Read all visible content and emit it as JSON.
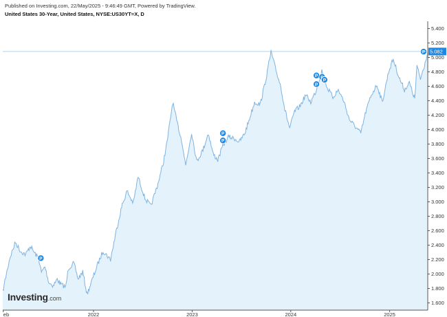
{
  "header": {
    "published": "Published on Investing.com, 22/May/2025 - 9:46:49 GMT, Powered by TradingView.",
    "instrument": "United States 30-Year, United States, NYSE:US30YT=X, D"
  },
  "logo": {
    "main": "Investing",
    "suffix": ".com"
  },
  "colors": {
    "line": "#7fb3e0",
    "fill": "#e3f2fb",
    "marker": "#1e88e5",
    "current_line": "#9ec4e4",
    "current_label_bg": "#1e88e5"
  },
  "chart_data": {
    "type": "area",
    "title": "",
    "xlabel": "",
    "ylabel": "",
    "x_range": [
      "2021-01-30",
      "2025-05-22"
    ],
    "ylim": [
      1.5,
      5.5
    ],
    "y_ticks": [
      "1.600",
      "1.800",
      "2.000",
      "2.200",
      "2.400",
      "2.600",
      "2.800",
      "3.000",
      "3.200",
      "3.400",
      "3.600",
      "3.800",
      "4.000",
      "4.200",
      "4.400",
      "4.600",
      "4.800",
      "5.000",
      "5.200",
      "5.400"
    ],
    "x_ticks": [
      {
        "date": "2021-02-01",
        "label": "eb"
      },
      {
        "date": "2022-01-01",
        "label": "2022"
      },
      {
        "date": "2023-01-01",
        "label": "2023"
      },
      {
        "date": "2024-01-01",
        "label": "2024"
      },
      {
        "date": "2025-01-01",
        "label": "2025"
      }
    ],
    "current_value": 5.082,
    "current_label": "5.082",
    "grid": false,
    "legend": "none",
    "series": [
      {
        "values": [
          {
            "x": "2021-01-30",
            "y": 1.75
          },
          {
            "x": "2021-02-10",
            "y": 1.96
          },
          {
            "x": "2021-02-25",
            "y": 2.22
          },
          {
            "x": "2021-03-18",
            "y": 2.44
          },
          {
            "x": "2021-04-05",
            "y": 2.32
          },
          {
            "x": "2021-04-25",
            "y": 2.27
          },
          {
            "x": "2021-05-12",
            "y": 2.39
          },
          {
            "x": "2021-05-28",
            "y": 2.29
          },
          {
            "x": "2021-06-12",
            "y": 2.22
          },
          {
            "x": "2021-06-22",
            "y": 2.02
          },
          {
            "x": "2021-07-05",
            "y": 2.1
          },
          {
            "x": "2021-07-20",
            "y": 1.88
          },
          {
            "x": "2021-08-05",
            "y": 1.84
          },
          {
            "x": "2021-08-20",
            "y": 1.93
          },
          {
            "x": "2021-09-01",
            "y": 1.86
          },
          {
            "x": "2021-09-20",
            "y": 1.82
          },
          {
            "x": "2021-09-30",
            "y": 2.08
          },
          {
            "x": "2021-10-20",
            "y": 2.15
          },
          {
            "x": "2021-11-05",
            "y": 1.93
          },
          {
            "x": "2021-11-22",
            "y": 2.03
          },
          {
            "x": "2021-12-08",
            "y": 1.72
          },
          {
            "x": "2021-12-28",
            "y": 1.93
          },
          {
            "x": "2022-01-15",
            "y": 2.12
          },
          {
            "x": "2022-02-05",
            "y": 2.32
          },
          {
            "x": "2022-03-05",
            "y": 2.2
          },
          {
            "x": "2022-03-25",
            "y": 2.58
          },
          {
            "x": "2022-04-15",
            "y": 2.93
          },
          {
            "x": "2022-05-05",
            "y": 3.15
          },
          {
            "x": "2022-05-28",
            "y": 2.98
          },
          {
            "x": "2022-06-15",
            "y": 3.35
          },
          {
            "x": "2022-07-10",
            "y": 3.05
          },
          {
            "x": "2022-08-01",
            "y": 2.94
          },
          {
            "x": "2022-08-25",
            "y": 3.22
          },
          {
            "x": "2022-09-15",
            "y": 3.52
          },
          {
            "x": "2022-09-30",
            "y": 3.82
          },
          {
            "x": "2022-10-21",
            "y": 4.38
          },
          {
            "x": "2022-11-05",
            "y": 4.12
          },
          {
            "x": "2022-11-25",
            "y": 3.82
          },
          {
            "x": "2022-12-08",
            "y": 3.5
          },
          {
            "x": "2022-12-30",
            "y": 3.96
          },
          {
            "x": "2023-01-18",
            "y": 3.56
          },
          {
            "x": "2023-02-10",
            "y": 3.72
          },
          {
            "x": "2023-03-02",
            "y": 3.95
          },
          {
            "x": "2023-03-20",
            "y": 3.66
          },
          {
            "x": "2023-04-06",
            "y": 3.58
          },
          {
            "x": "2023-04-25",
            "y": 3.78
          },
          {
            "x": "2023-05-15",
            "y": 3.9
          },
          {
            "x": "2023-06-05",
            "y": 3.88
          },
          {
            "x": "2023-06-25",
            "y": 3.83
          },
          {
            "x": "2023-07-15",
            "y": 3.95
          },
          {
            "x": "2023-08-01",
            "y": 4.15
          },
          {
            "x": "2023-08-20",
            "y": 4.38
          },
          {
            "x": "2023-09-10",
            "y": 4.35
          },
          {
            "x": "2023-10-01",
            "y": 4.7
          },
          {
            "x": "2023-10-20",
            "y": 5.08
          },
          {
            "x": "2023-11-05",
            "y": 4.85
          },
          {
            "x": "2023-11-25",
            "y": 4.6
          },
          {
            "x": "2023-12-10",
            "y": 4.28
          },
          {
            "x": "2023-12-28",
            "y": 4.02
          },
          {
            "x": "2024-01-15",
            "y": 4.25
          },
          {
            "x": "2024-02-05",
            "y": 4.33
          },
          {
            "x": "2024-02-25",
            "y": 4.48
          },
          {
            "x": "2024-03-15",
            "y": 4.38
          },
          {
            "x": "2024-04-05",
            "y": 4.55
          },
          {
            "x": "2024-04-25",
            "y": 4.82
          },
          {
            "x": "2024-05-15",
            "y": 4.58
          },
          {
            "x": "2024-06-05",
            "y": 4.45
          },
          {
            "x": "2024-06-25",
            "y": 4.55
          },
          {
            "x": "2024-07-15",
            "y": 4.4
          },
          {
            "x": "2024-08-05",
            "y": 4.14
          },
          {
            "x": "2024-08-25",
            "y": 4.05
          },
          {
            "x": "2024-09-16",
            "y": 3.95
          },
          {
            "x": "2024-10-05",
            "y": 4.25
          },
          {
            "x": "2024-10-25",
            "y": 4.48
          },
          {
            "x": "2024-11-15",
            "y": 4.62
          },
          {
            "x": "2024-12-05",
            "y": 4.38
          },
          {
            "x": "2024-12-28",
            "y": 4.8
          },
          {
            "x": "2025-01-14",
            "y": 4.98
          },
          {
            "x": "2025-02-05",
            "y": 4.72
          },
          {
            "x": "2025-02-25",
            "y": 4.55
          },
          {
            "x": "2025-03-15",
            "y": 4.65
          },
          {
            "x": "2025-04-04",
            "y": 4.42
          },
          {
            "x": "2025-04-12",
            "y": 4.88
          },
          {
            "x": "2025-04-25",
            "y": 4.7
          },
          {
            "x": "2025-05-10",
            "y": 4.9
          },
          {
            "x": "2025-05-22",
            "y": 5.08
          }
        ]
      }
    ],
    "annotations": [
      {
        "x": "2021-06-20",
        "y": 2.22,
        "label": "P"
      },
      {
        "x": "2023-04-25",
        "y": 3.95,
        "label": "P"
      },
      {
        "x": "2023-04-25",
        "y": 3.85,
        "label": "P"
      },
      {
        "x": "2024-04-05",
        "y": 4.75,
        "label": "P"
      },
      {
        "x": "2024-04-05",
        "y": 4.63,
        "label": "P"
      },
      {
        "x": "2024-04-26",
        "y": 4.73,
        "label": "P"
      },
      {
        "x": "2024-05-05",
        "y": 4.69,
        "label": "P"
      },
      {
        "x": "2025-05-22",
        "y": 5.08,
        "label": "P"
      }
    ]
  }
}
